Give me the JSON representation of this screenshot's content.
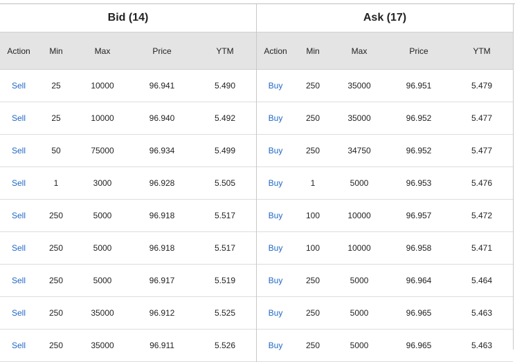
{
  "bid": {
    "title": "Bid (14)",
    "headers": [
      "Action",
      "Min",
      "Max",
      "Price",
      "YTM"
    ],
    "rows": [
      {
        "action": "Sell",
        "min": "25",
        "max": "10000",
        "price": "96.941",
        "ytm": "5.490"
      },
      {
        "action": "Sell",
        "min": "25",
        "max": "10000",
        "price": "96.940",
        "ytm": "5.492"
      },
      {
        "action": "Sell",
        "min": "50",
        "max": "75000",
        "price": "96.934",
        "ytm": "5.499"
      },
      {
        "action": "Sell",
        "min": "1",
        "max": "3000",
        "price": "96.928",
        "ytm": "5.505"
      },
      {
        "action": "Sell",
        "min": "250",
        "max": "5000",
        "price": "96.918",
        "ytm": "5.517"
      },
      {
        "action": "Sell",
        "min": "250",
        "max": "5000",
        "price": "96.918",
        "ytm": "5.517"
      },
      {
        "action": "Sell",
        "min": "250",
        "max": "5000",
        "price": "96.917",
        "ytm": "5.519"
      },
      {
        "action": "Sell",
        "min": "250",
        "max": "35000",
        "price": "96.912",
        "ytm": "5.525"
      },
      {
        "action": "Sell",
        "min": "250",
        "max": "35000",
        "price": "96.911",
        "ytm": "5.526"
      }
    ]
  },
  "ask": {
    "title": "Ask (17)",
    "headers": [
      "Action",
      "Min",
      "Max",
      "Price",
      "YTM"
    ],
    "rows": [
      {
        "action": "Buy",
        "min": "250",
        "max": "35000",
        "price": "96.951",
        "ytm": "5.479"
      },
      {
        "action": "Buy",
        "min": "250",
        "max": "35000",
        "price": "96.952",
        "ytm": "5.477"
      },
      {
        "action": "Buy",
        "min": "250",
        "max": "34750",
        "price": "96.952",
        "ytm": "5.477"
      },
      {
        "action": "Buy",
        "min": "1",
        "max": "5000",
        "price": "96.953",
        "ytm": "5.476"
      },
      {
        "action": "Buy",
        "min": "100",
        "max": "10000",
        "price": "96.957",
        "ytm": "5.472"
      },
      {
        "action": "Buy",
        "min": "100",
        "max": "10000",
        "price": "96.958",
        "ytm": "5.471"
      },
      {
        "action": "Buy",
        "min": "250",
        "max": "5000",
        "price": "96.964",
        "ytm": "5.464"
      },
      {
        "action": "Buy",
        "min": "250",
        "max": "5000",
        "price": "96.965",
        "ytm": "5.463"
      },
      {
        "action": "Buy",
        "min": "250",
        "max": "5000",
        "price": "96.965",
        "ytm": "5.463"
      }
    ]
  },
  "colors": {
    "action_link": "#1f67c4",
    "header_bg": "#e4e4e4"
  }
}
